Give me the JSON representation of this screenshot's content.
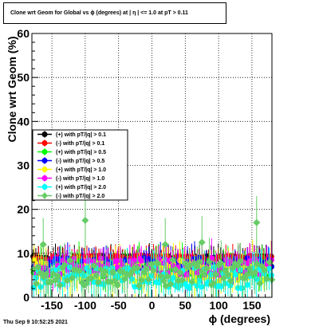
{
  "chart_data": {
    "type": "scatter",
    "title": "Clone wrt Geom for Global vs ϕ (degrees) at | η | <= 1.0 at pT > 0.11",
    "xlabel": "ϕ (degrees)",
    "ylabel": "Clone wrt Geom (%)",
    "xlim": [
      -180,
      180
    ],
    "ylim": [
      0,
      60
    ],
    "x_ticks": [
      "-150",
      "-100",
      "-50",
      "0",
      "50",
      "100",
      "150"
    ],
    "y_ticks": [
      "0",
      "10",
      "20",
      "30",
      "40",
      "50",
      "60"
    ],
    "grid": true,
    "legend_position": "left",
    "series": [
      {
        "name": "(+) with pT/|q| > 0.1",
        "color": "#000000",
        "marker": "circle",
        "level": 8.8,
        "spread": 0.6
      },
      {
        "name": "(-) with pT/|q| > 0.1",
        "color": "#ff0000",
        "marker": "circle",
        "level": 9.0,
        "spread": 0.5
      },
      {
        "name": "(+) with pT/|q| > 0.5",
        "color": "#00ff00",
        "marker": "circle",
        "level": 6.5,
        "spread": 2.0
      },
      {
        "name": "(-) with pT/|q| > 0.5",
        "color": "#0000ff",
        "marker": "circle",
        "level": 7.5,
        "spread": 1.5
      },
      {
        "name": "(+) with pT/|q| > 1.0",
        "color": "#ffff00",
        "marker": "circle",
        "level": 6.0,
        "spread": 2.5
      },
      {
        "name": "(-) with pT/|q| > 1.0",
        "color": "#ff00ff",
        "marker": "circle",
        "level": 7.0,
        "spread": 2.0
      },
      {
        "name": "(+) with pT/|q| > 2.0",
        "color": "#00ffff",
        "marker": "circle",
        "level": 4.5,
        "spread": 2.5
      },
      {
        "name": "(-) with pT/|q| > 2.0",
        "color": "#66cc66",
        "marker": "diamond",
        "level": 5.5,
        "spread": 3.0
      }
    ],
    "outliers": [
      {
        "x": -100,
        "y": 17.5,
        "series": 7
      },
      {
        "x": 157,
        "y": 17,
        "series": 7
      },
      {
        "x": -163,
        "y": 12,
        "series": 7
      },
      {
        "x": 20,
        "y": 12,
        "series": 7
      },
      {
        "x": 75,
        "y": 12.5,
        "series": 7
      }
    ]
  },
  "footer": {
    "timestamp": "Thu Sep  9 10:52:25 2021"
  }
}
